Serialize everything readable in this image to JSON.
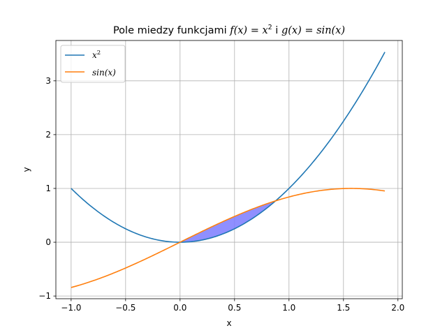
{
  "chart_data": {
    "type": "line",
    "title": {
      "prefix": "Pole miedzy funkcjami ",
      "f_part": "f(x)",
      "eq1": " = ",
      "x_base": "x",
      "exp": "2",
      "joiner": " i ",
      "g_part": "g(x)",
      "eq2": " = ",
      "sin_part": "sin(x)"
    },
    "xlabel": "x",
    "ylabel": "y",
    "xlim": [
      -1.14,
      2.04
    ],
    "ylim": [
      -1.05,
      3.75
    ],
    "x_ticks": [
      -1.0,
      -0.5,
      0.0,
      0.5,
      1.0,
      1.5,
      2.0
    ],
    "x_tick_labels": [
      "−1.0",
      "−0.5",
      "0.0",
      "0.5",
      "1.0",
      "1.5",
      "2.0"
    ],
    "y_ticks": [
      -1,
      0,
      1,
      2,
      3
    ],
    "y_tick_labels": [
      "−1",
      "0",
      "1",
      "2",
      "3"
    ],
    "x_range": [
      -1.0,
      1.88
    ],
    "grid": true,
    "legend_placement": "top-left",
    "series": [
      {
        "name": "x^2",
        "label_base": "x",
        "label_exp": "2",
        "function": "x^2",
        "color": "#1f77b4"
      },
      {
        "name": "sin(x)",
        "label_base": "sin(x)",
        "label_exp": "",
        "function": "sin(x)",
        "color": "#ff7f0e"
      }
    ],
    "fill_between": {
      "from": 0.0,
      "to": 0.8767,
      "color": "#7b7bff",
      "opacity": 0.85
    }
  }
}
